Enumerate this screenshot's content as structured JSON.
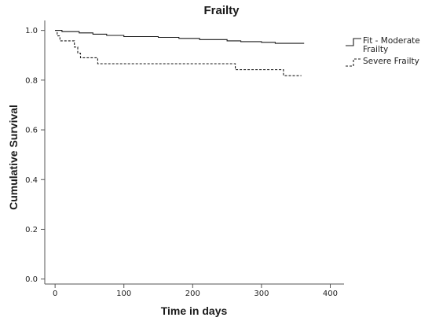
{
  "chart_data": {
    "type": "line",
    "title": "Frailty",
    "xlabel": "Time in days",
    "ylabel": "Cumulative Survival",
    "xlim": [
      -15,
      420
    ],
    "ylim": [
      -0.02,
      1.04
    ],
    "x_ticks": [
      0,
      100,
      200,
      300,
      400
    ],
    "y_ticks": [
      0.0,
      0.2,
      0.4,
      0.6,
      0.8,
      1.0
    ],
    "x_tick_labels": [
      "0",
      "100",
      "200",
      "300",
      "400"
    ],
    "y_tick_labels": [
      "0.0",
      "0.2",
      "0.4",
      "0.6",
      "0.8",
      "1.0"
    ],
    "grid": false,
    "legend_position": "right",
    "series": [
      {
        "name": "Fit - Moderate Frailty",
        "line_style": "solid",
        "color": "#1a1a1a",
        "points": [
          [
            0,
            1.0
          ],
          [
            10,
            0.995
          ],
          [
            35,
            0.99
          ],
          [
            55,
            0.985
          ],
          [
            75,
            0.98
          ],
          [
            100,
            0.975
          ],
          [
            150,
            0.972
          ],
          [
            180,
            0.968
          ],
          [
            210,
            0.963
          ],
          [
            250,
            0.958
          ],
          [
            270,
            0.955
          ],
          [
            300,
            0.952
          ],
          [
            320,
            0.948
          ],
          [
            362,
            0.948
          ]
        ]
      },
      {
        "name": "Severe Frailty",
        "line_style": "dashed",
        "color": "#1a1a1a",
        "points": [
          [
            0,
            1.0
          ],
          [
            3,
            0.978
          ],
          [
            7,
            0.958
          ],
          [
            28,
            0.933
          ],
          [
            33,
            0.908
          ],
          [
            37,
            0.89
          ],
          [
            62,
            0.866
          ],
          [
            262,
            0.842
          ],
          [
            332,
            0.818
          ],
          [
            358,
            0.818
          ]
        ]
      }
    ]
  }
}
